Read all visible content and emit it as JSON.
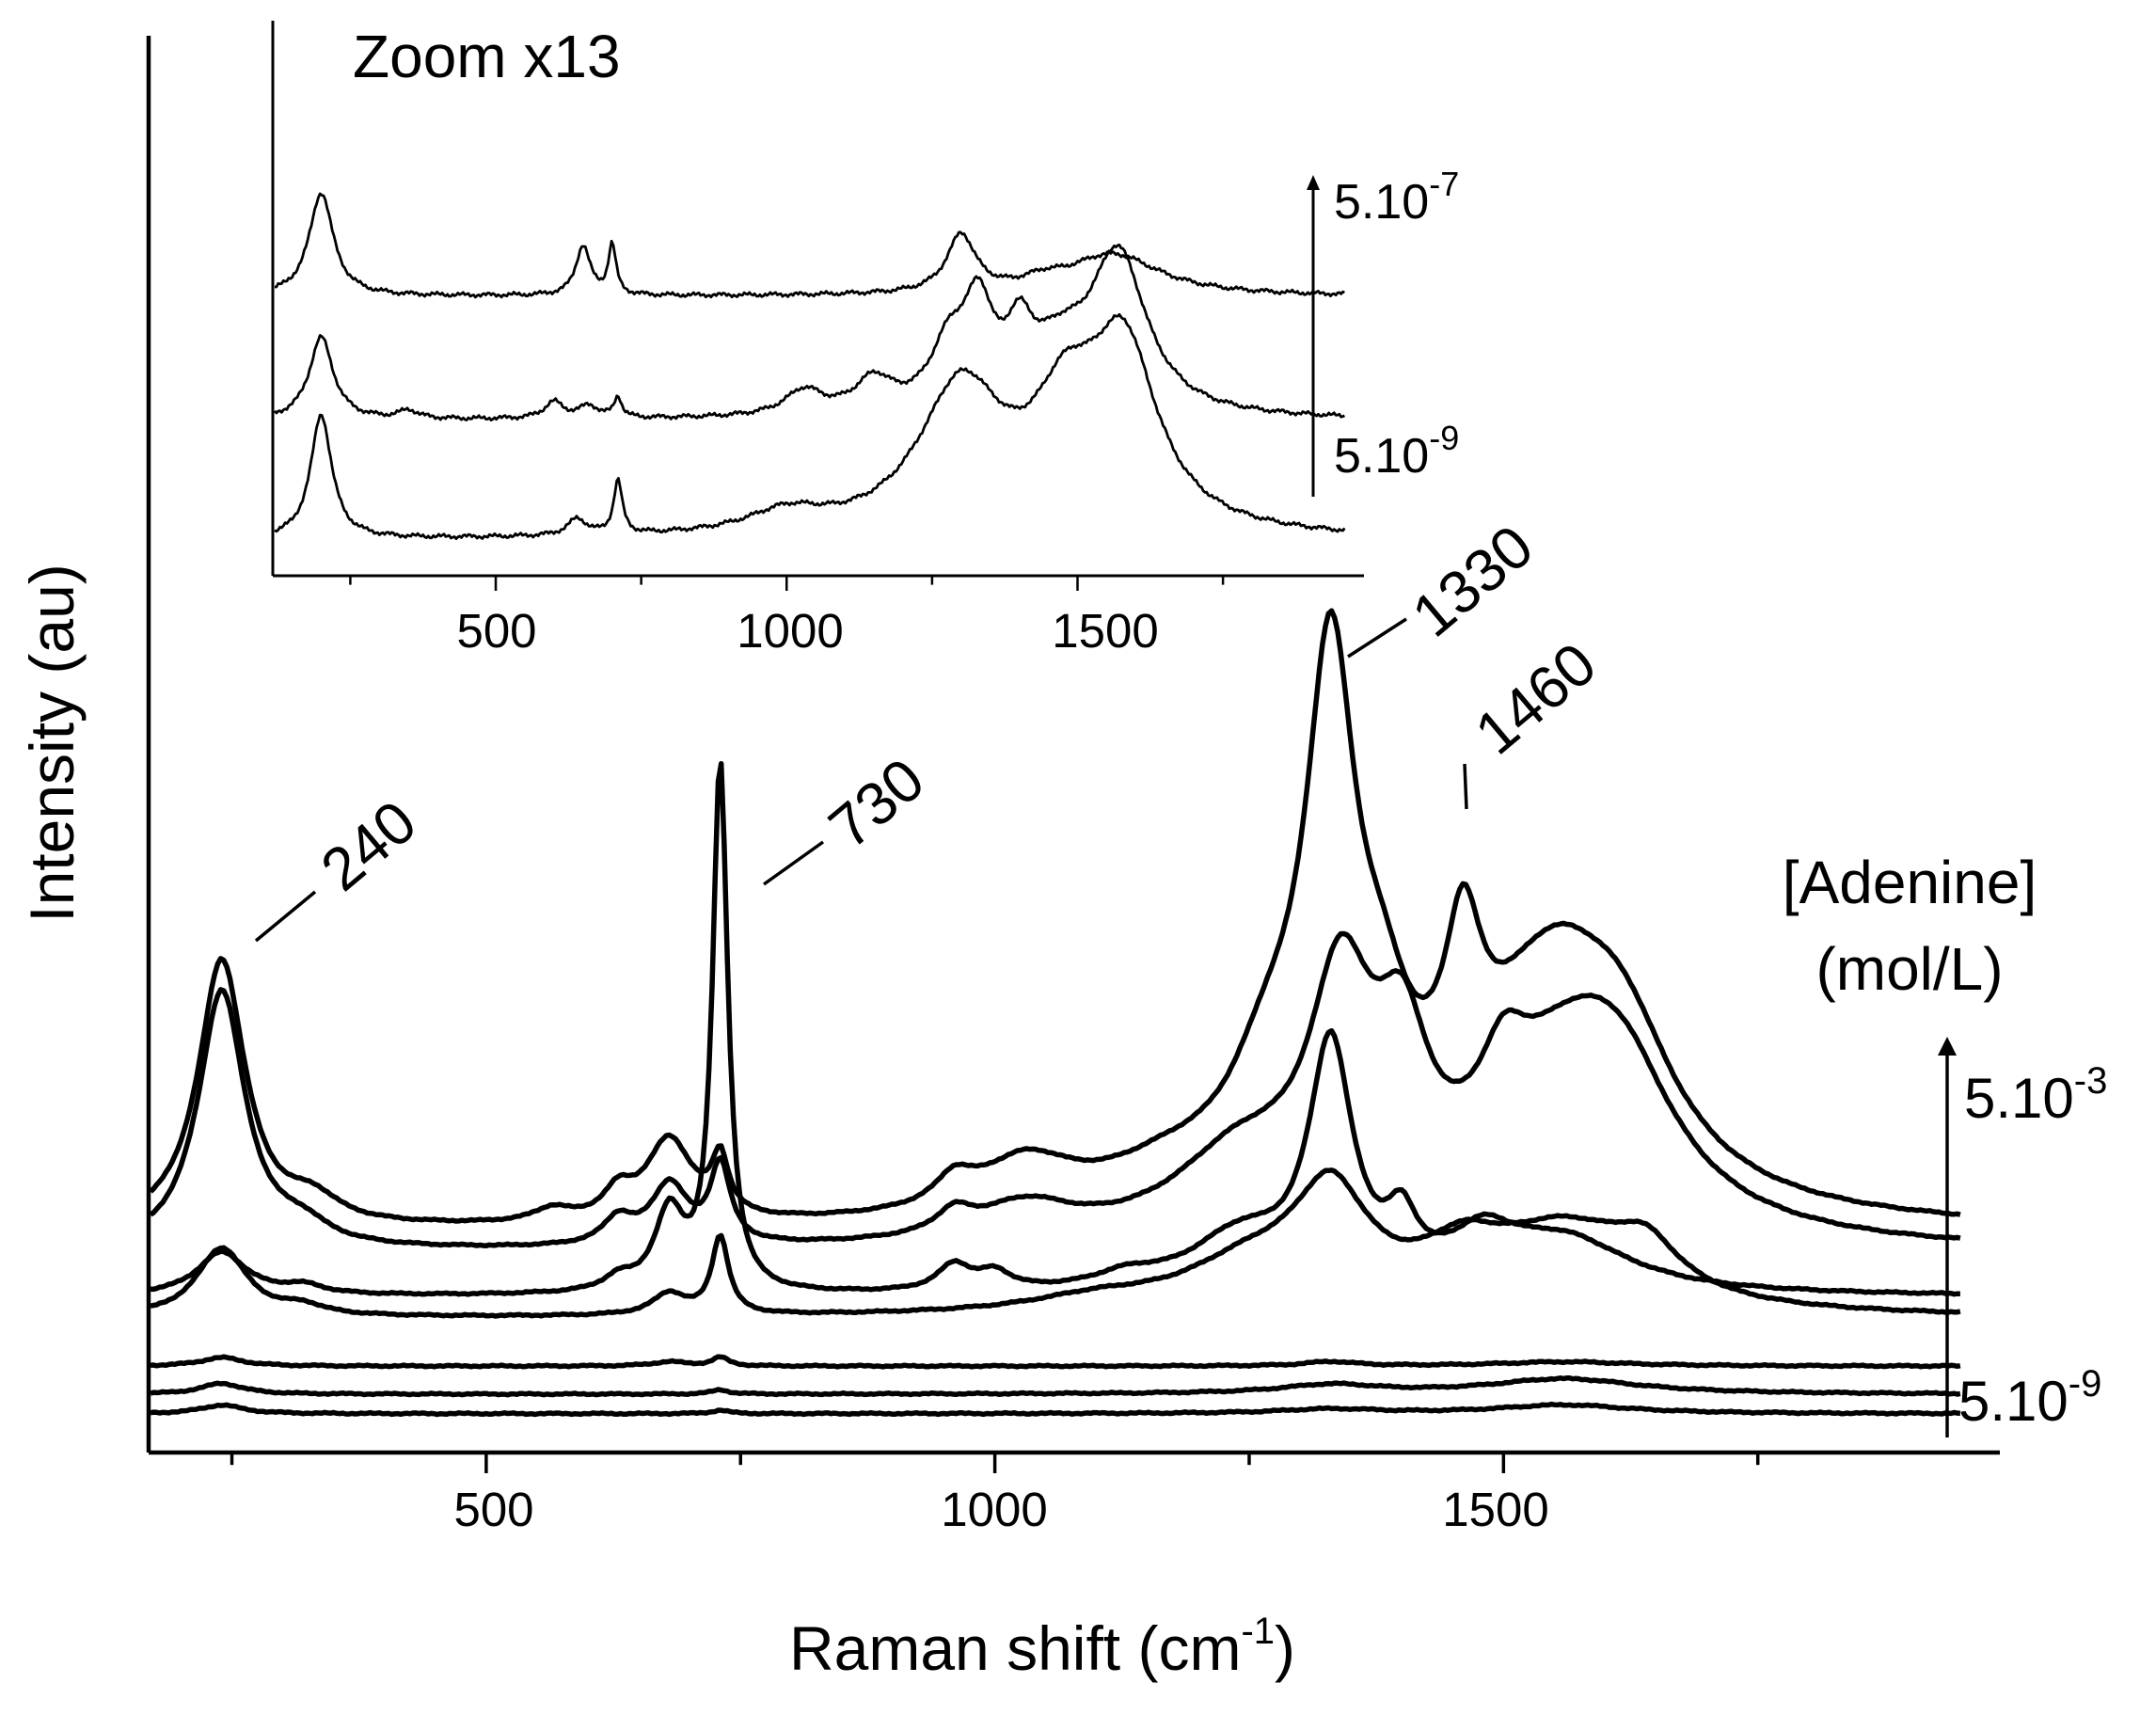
{
  "chart_data": [
    {
      "type": "line",
      "panel": "main",
      "xlabel": "Raman shift (cm",
      "xlabel_sup": "-1",
      "xlabel_end": ")",
      "ylabel": "Intensity (au)",
      "xlim": [
        170,
        1950
      ],
      "x_ticks": [
        500,
        1000,
        1500
      ],
      "x_tick_labels": [
        "500",
        "1000",
        "1500"
      ],
      "y_ticks_shown": false,
      "grid": false,
      "legend_title": [
        "[Adenine]",
        "(mol/L)"
      ],
      "concentration_labels": {
        "top": {
          "base": "5.10",
          "sup": "-3"
        },
        "bottom": {
          "base": "5.10",
          "sup": "-9"
        }
      },
      "peak_annotations": [
        "240",
        "730",
        "1330",
        "1460"
      ],
      "series": [
        {
          "baseline": 0.44,
          "peaks": [
            [
              240,
              0.62,
              28
            ],
            [
              330,
              0.05,
              30
            ],
            [
              565,
              0.03,
              22
            ],
            [
              630,
              0.06,
              18
            ],
            [
              680,
              0.19,
              28
            ],
            [
              730,
              0.13,
              10
            ],
            [
              960,
              0.06,
              22
            ],
            [
              1030,
              0.12,
              60
            ],
            [
              1170,
              0.08,
              80
            ],
            [
              1270,
              0.25,
              50
            ],
            [
              1330,
              1.13,
              30
            ],
            [
              1380,
              0.25,
              35
            ],
            [
              1460,
              0.38,
              22
            ],
            [
              1550,
              0.55,
              90
            ],
            [
              1620,
              0.22,
              60
            ]
          ]
        },
        {
          "baseline": 0.39,
          "peaks": [
            [
              240,
              0.6,
              28
            ],
            [
              320,
              0.04,
              30
            ],
            [
              630,
              0.06,
              18
            ],
            [
              680,
              0.14,
              22
            ],
            [
              730,
              0.18,
              12
            ],
            [
              960,
              0.05,
              22
            ],
            [
              1030,
              0.08,
              60
            ],
            [
              1240,
              0.18,
              80
            ],
            [
              1340,
              0.52,
              38
            ],
            [
              1400,
              0.34,
              32
            ],
            [
              1500,
              0.18,
              30
            ],
            [
              1570,
              0.42,
              90
            ],
            [
              1620,
              0.18,
              60
            ]
          ]
        },
        {
          "baseline": 0.29,
          "peaks": [
            [
              240,
              0.1,
              30
            ],
            [
              320,
              0.02,
              25
            ],
            [
              630,
              0.03,
              18
            ],
            [
              680,
              0.18,
              18
            ],
            [
              730,
              1.22,
              9
            ],
            [
              960,
              0.06,
              20
            ],
            [
              1000,
              0.04,
              20
            ],
            [
              1130,
              0.03,
              40
            ],
            [
              1240,
              0.12,
              60
            ],
            [
              1330,
              0.55,
              26
            ],
            [
              1400,
              0.12,
              18
            ],
            [
              1480,
              0.1,
              40
            ],
            [
              1560,
              0.12,
              80
            ]
          ]
        },
        {
          "baseline": 0.24,
          "peaks": [
            [
              240,
              0.16,
              30
            ],
            [
              320,
              0.02,
              25
            ],
            [
              680,
              0.05,
              20
            ],
            [
              730,
              0.18,
              10
            ],
            [
              1100,
              0.03,
              80
            ],
            [
              1250,
              0.1,
              80
            ],
            [
              1330,
              0.25,
              45
            ],
            [
              1460,
              0.1,
              50
            ],
            [
              1560,
              0.18,
              90
            ],
            [
              1640,
              0.1,
              40
            ]
          ]
        },
        {
          "baseline": 0.13,
          "peaks": [
            [
              240,
              0.02,
              25
            ],
            [
              680,
              0.01,
              20
            ],
            [
              730,
              0.02,
              10
            ],
            [
              1330,
              0.01,
              30
            ],
            [
              1560,
              0.01,
              80
            ]
          ]
        },
        {
          "baseline": 0.065,
          "peaks": [
            [
              240,
              0.025,
              25
            ],
            [
              730,
              0.01,
              10
            ],
            [
              1330,
              0.02,
              60
            ],
            [
              1560,
              0.035,
              90
            ]
          ]
        },
        {
          "baseline": 0.02,
          "peaks": [
            [
              240,
              0.02,
              25
            ],
            [
              730,
              0.008,
              10
            ],
            [
              1330,
              0.01,
              60
            ],
            [
              1560,
              0.02,
              80
            ]
          ]
        }
      ]
    },
    {
      "type": "line",
      "panel": "inset",
      "title": "Zoom x13",
      "xlim": [
        120,
        1960
      ],
      "x_ticks": [
        500,
        1000,
        1500
      ],
      "x_tick_labels": [
        "500",
        "1000",
        "1500"
      ],
      "concentration_labels": {
        "top": {
          "base": "5.10",
          "sup": "-7"
        },
        "bottom": {
          "base": "5.10",
          "sup": "-9"
        }
      },
      "series": [
        {
          "baseline": 0.62,
          "peaks": [
            [
              200,
              0.25,
              25
            ],
            [
              650,
              0.12,
              15
            ],
            [
              700,
              0.12,
              8
            ],
            [
              1300,
              0.14,
              30
            ],
            [
              1440,
              0.02,
              40
            ],
            [
              1560,
              0.1,
              100
            ]
          ]
        },
        {
          "baseline": 0.32,
          "peaks": [
            [
              200,
              0.2,
              25
            ],
            [
              350,
              0.02,
              20
            ],
            [
              600,
              0.04,
              20
            ],
            [
              660,
              0.03,
              20
            ],
            [
              710,
              0.05,
              8
            ],
            [
              1030,
              0.06,
              40
            ],
            [
              1150,
              0.08,
              40
            ],
            [
              1280,
              0.15,
              40
            ],
            [
              1330,
              0.22,
              30
            ],
            [
              1400,
              0.15,
              30
            ],
            [
              1570,
              0.38,
              60
            ],
            [
              1470,
              0.12,
              60
            ]
          ]
        },
        {
          "baseline": 0.03,
          "peaks": [
            [
              200,
              0.3,
              22
            ],
            [
              640,
              0.04,
              20
            ],
            [
              710,
              0.13,
              9
            ],
            [
              1000,
              0.05,
              80
            ],
            [
              1300,
              0.35,
              90
            ],
            [
              1480,
              0.25,
              70
            ],
            [
              1580,
              0.42,
              70
            ]
          ]
        }
      ]
    }
  ]
}
